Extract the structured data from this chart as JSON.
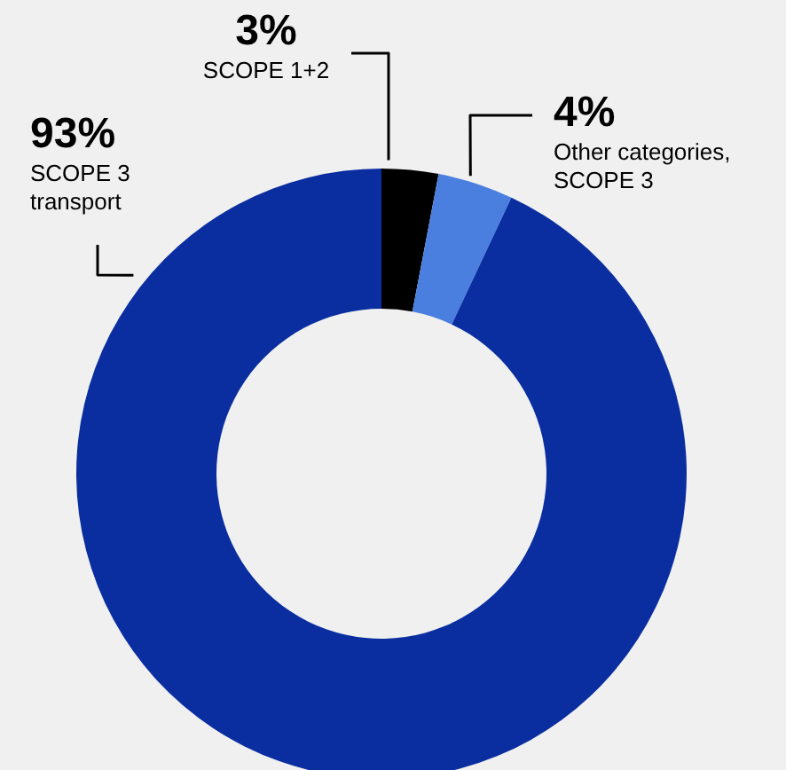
{
  "chart_data": {
    "type": "donut",
    "categories": [
      "SCOPE 1+2",
      "Other categories, SCOPE 3",
      "SCOPE 3 transport"
    ],
    "values": [
      3,
      4,
      93
    ],
    "colors": [
      "#000000",
      "#4a7fe0",
      "#0a2ea0"
    ],
    "value_labels": [
      "3%",
      "4%",
      "93%"
    ]
  }
}
